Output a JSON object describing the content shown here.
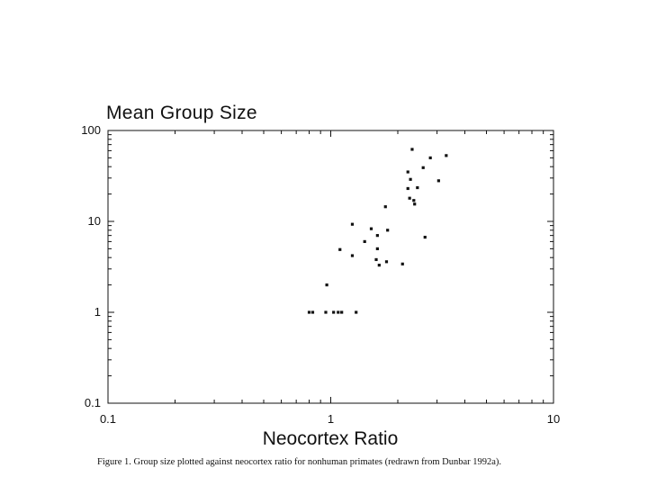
{
  "chart_data": {
    "type": "scatter",
    "title": "Mean Group Size",
    "xlabel": "Neocortex Ratio",
    "ylabel": "",
    "x_scale": "log",
    "y_scale": "log",
    "xlim": [
      0.1,
      10
    ],
    "ylim": [
      0.1,
      100
    ],
    "x_ticks": [
      "0.1",
      "1",
      "10"
    ],
    "y_ticks": [
      "100",
      "10",
      "1",
      "0.1"
    ],
    "grid": false,
    "caption": "Figure 1.    Group size plotted against neocortex ratio for nonhuman primates (redrawn from Dunbar 1992a).",
    "points": [
      {
        "x": 0.8,
        "y": 1.0
      },
      {
        "x": 0.83,
        "y": 1.0
      },
      {
        "x": 0.95,
        "y": 1.0
      },
      {
        "x": 1.03,
        "y": 1.0
      },
      {
        "x": 1.08,
        "y": 1.0
      },
      {
        "x": 1.12,
        "y": 1.0
      },
      {
        "x": 1.3,
        "y": 1.0
      },
      {
        "x": 0.96,
        "y": 2.0
      },
      {
        "x": 1.1,
        "y": 4.9
      },
      {
        "x": 1.25,
        "y": 4.2
      },
      {
        "x": 1.25,
        "y": 9.3
      },
      {
        "x": 1.42,
        "y": 6.0
      },
      {
        "x": 1.52,
        "y": 8.3
      },
      {
        "x": 1.62,
        "y": 7.0
      },
      {
        "x": 1.62,
        "y": 5.0
      },
      {
        "x": 1.6,
        "y": 3.8
      },
      {
        "x": 1.65,
        "y": 3.3
      },
      {
        "x": 1.78,
        "y": 3.6
      },
      {
        "x": 1.8,
        "y": 8.0
      },
      {
        "x": 1.76,
        "y": 14.5
      },
      {
        "x": 2.1,
        "y": 3.4
      },
      {
        "x": 2.22,
        "y": 35.0
      },
      {
        "x": 2.28,
        "y": 29.0
      },
      {
        "x": 2.22,
        "y": 23.0
      },
      {
        "x": 2.26,
        "y": 18.0
      },
      {
        "x": 2.36,
        "y": 17.0
      },
      {
        "x": 2.38,
        "y": 15.5
      },
      {
        "x": 2.32,
        "y": 62.0
      },
      {
        "x": 2.45,
        "y": 23.5
      },
      {
        "x": 2.6,
        "y": 39.0
      },
      {
        "x": 2.8,
        "y": 50.0
      },
      {
        "x": 3.05,
        "y": 28.0
      },
      {
        "x": 3.3,
        "y": 53.0
      },
      {
        "x": 2.65,
        "y": 6.7
      }
    ]
  },
  "colors": {
    "ink": "#111111",
    "background": "#ffffff"
  }
}
